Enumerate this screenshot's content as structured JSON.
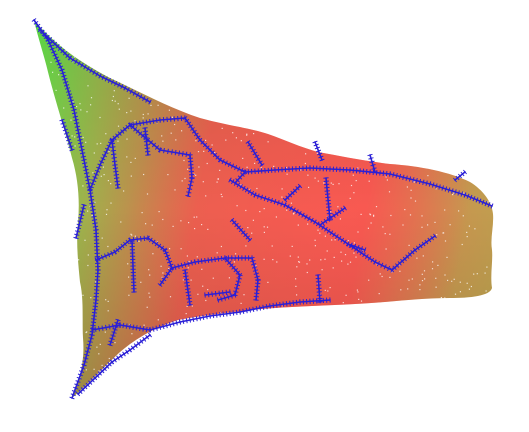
{
  "scene": {
    "background": "#ffffff",
    "surface_gradient": [
      "#5fe84a",
      "#9fb24c",
      "#e8604e",
      "#f2584e",
      "#b9a64e"
    ],
    "network_color": "#2a1fd6",
    "speck_color": "#ffffff"
  }
}
